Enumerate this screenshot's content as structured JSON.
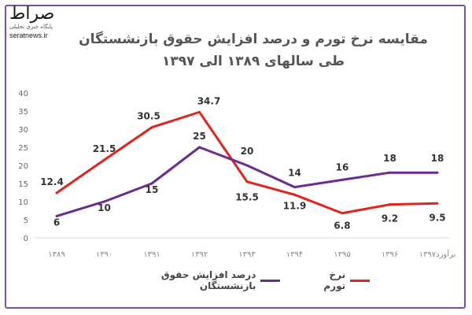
{
  "logo": {
    "mark": "صراط",
    "subtitle": "پایگاه خبری تحلیلی",
    "site": "seratnews.ir"
  },
  "chart_data": {
    "type": "line",
    "title": "مقایسه نرخ تورم و درصد افزایش حقوق بازنشستگان طی سالهای ۱۳۸۹ الی ۱۳۹۷",
    "categories": [
      "۱۳۸۹",
      "۱۳۹۰",
      "۱۳۹۱",
      "۱۳۹۲",
      "۱۳۹۳",
      "۱۳۹۴",
      "۱۳۹۵",
      "۱۳۹۶",
      "برآورد۱۳۹۷"
    ],
    "ylim": [
      0,
      40
    ],
    "yticks": [
      0,
      5,
      10,
      15,
      20,
      25,
      30,
      35,
      40
    ],
    "grid": false,
    "legend_position": "bottom",
    "series": [
      {
        "name": "نرخ تورم",
        "color": "#e0241b",
        "values": [
          12.4,
          21.5,
          30.5,
          34.7,
          15.5,
          11.9,
          6.8,
          9.2,
          9.5
        ],
        "labels": [
          "12.4",
          "21.5",
          "30.5",
          "34.7",
          "15.5",
          "11.9",
          "6.8",
          "9.2",
          "9.5"
        ]
      },
      {
        "name": "درصد افزایش حقوق بازنشستگان",
        "color": "#6a2c91",
        "values": [
          6,
          10,
          15,
          25,
          20,
          14,
          16,
          18,
          18
        ],
        "labels": [
          "6",
          "10",
          "15",
          "25",
          "20",
          "14",
          "16",
          "18",
          "18"
        ]
      }
    ]
  }
}
